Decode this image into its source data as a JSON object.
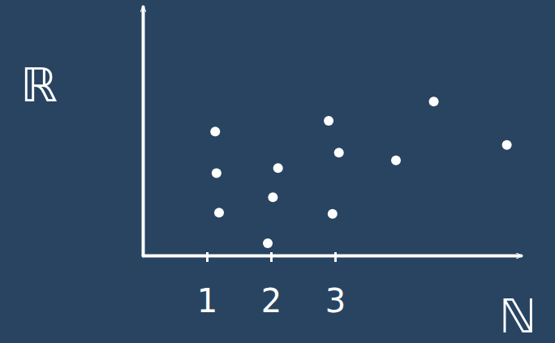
{
  "chart_data": {
    "type": "scatter",
    "x_label": "ℕ",
    "y_label": "ℝ",
    "x": [
      1.13,
      1.15,
      1.19,
      2.11,
      2.03,
      1.95,
      2.9,
      3.06,
      2.96,
      3.95,
      4.54,
      5.68
    ],
    "values": [
      1.94,
      1.29,
      0.67,
      1.37,
      0.91,
      0.19,
      2.11,
      1.61,
      0.65,
      1.49,
      2.41,
      1.73
    ],
    "xlim": [
      0,
      5.9
    ],
    "ylim": [
      0,
      3.9
    ],
    "xticks": [
      1,
      2,
      3
    ],
    "yticks": [],
    "tick_labels": "x",
    "color": "#ffffff",
    "marker": "circle",
    "grid": false
  }
}
